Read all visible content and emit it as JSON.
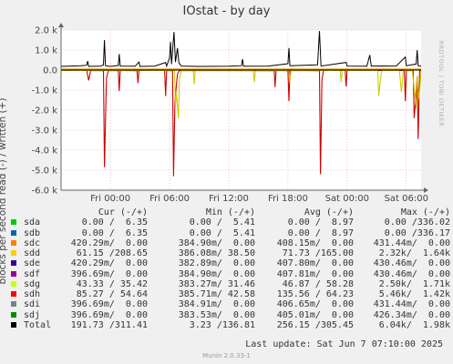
{
  "chart_data": {
    "type": "line",
    "title": "IOstat - by day",
    "ylabel": "blocks per second read (-) / written (+)",
    "side_label": "RRDTOOL / TOBI OETIKER",
    "ylim": [
      -6000,
      2000
    ],
    "yticks": [
      {
        "value": 2000,
        "label": "2.0 k"
      },
      {
        "value": 1000,
        "label": "1.0 k"
      },
      {
        "value": 0,
        "label": "0.0"
      },
      {
        "value": -1000,
        "label": "-1.0 k"
      },
      {
        "value": -2000,
        "label": "-2.0 k"
      },
      {
        "value": -3000,
        "label": "-3.0 k"
      },
      {
        "value": -4000,
        "label": "-4.0 k"
      },
      {
        "value": -5000,
        "label": "-5.0 k"
      },
      {
        "value": -6000,
        "label": "-6.0 k"
      }
    ],
    "xlim": [
      -5,
      31.5
    ],
    "xticks": [
      {
        "value": 0,
        "label": "Fri 00:00"
      },
      {
        "value": 6,
        "label": "Fri 06:00"
      },
      {
        "value": 12,
        "label": "Fri 12:00"
      },
      {
        "value": 18,
        "label": "Fri 18:00"
      },
      {
        "value": 24,
        "label": "Sat 00:00"
      },
      {
        "value": 30,
        "label": "Sat 06:00"
      }
    ],
    "series": [
      {
        "name": "sdh",
        "color": "#cc0000",
        "points": [
          [
            -5,
            -20
          ],
          [
            -2.4,
            -20
          ],
          [
            -2.2,
            -520
          ],
          [
            -2.0,
            -20
          ],
          [
            -0.7,
            -30
          ],
          [
            -0.6,
            -4850
          ],
          [
            -0.4,
            -400
          ],
          [
            -0.2,
            -20
          ],
          [
            0.8,
            -30
          ],
          [
            0.9,
            -1050
          ],
          [
            1.0,
            -20
          ],
          [
            2.7,
            -30
          ],
          [
            2.8,
            -650
          ],
          [
            2.9,
            -20
          ],
          [
            5.5,
            -20
          ],
          [
            5.6,
            -1300
          ],
          [
            5.7,
            -20
          ],
          [
            6.3,
            -30
          ],
          [
            6.4,
            -5300
          ],
          [
            6.55,
            -1500
          ],
          [
            6.8,
            -200
          ],
          [
            7.0,
            -20
          ],
          [
            16.6,
            -30
          ],
          [
            16.7,
            -850
          ],
          [
            16.8,
            -20
          ],
          [
            18.0,
            -30
          ],
          [
            18.1,
            -1550
          ],
          [
            18.2,
            -20
          ],
          [
            21.2,
            -30
          ],
          [
            21.3,
            -5200
          ],
          [
            21.45,
            -500
          ],
          [
            21.6,
            -20
          ],
          [
            23.8,
            -20
          ],
          [
            23.9,
            -820
          ],
          [
            24.0,
            -20
          ],
          [
            29.8,
            -20
          ],
          [
            29.9,
            -1550
          ],
          [
            30.0,
            -20
          ],
          [
            30.7,
            -30
          ],
          [
            30.8,
            -2400
          ],
          [
            30.9,
            -1800
          ],
          [
            31.1,
            -300
          ],
          [
            31.2,
            -3450
          ],
          [
            31.35,
            -20
          ],
          [
            31.5,
            -20
          ]
        ]
      },
      {
        "name": "sdg",
        "color": "#cccc00",
        "points": [
          [
            -5,
            -20
          ],
          [
            6.5,
            -20
          ],
          [
            6.6,
            -1750
          ],
          [
            6.7,
            -1200
          ],
          [
            6.9,
            -2400
          ],
          [
            7.0,
            -400
          ],
          [
            7.2,
            -30
          ],
          [
            8.4,
            -30
          ],
          [
            8.5,
            -700
          ],
          [
            8.6,
            -20
          ],
          [
            14.5,
            -20
          ],
          [
            14.6,
            -600
          ],
          [
            14.7,
            -20
          ],
          [
            18.1,
            -20
          ],
          [
            18.2,
            -600
          ],
          [
            18.3,
            -20
          ],
          [
            23.3,
            -20
          ],
          [
            23.4,
            -600
          ],
          [
            23.5,
            -20
          ],
          [
            27.1,
            -20
          ],
          [
            27.2,
            -1300
          ],
          [
            27.35,
            -600
          ],
          [
            27.5,
            -20
          ],
          [
            29.3,
            -20
          ],
          [
            29.5,
            -1100
          ],
          [
            29.7,
            -20
          ],
          [
            30.6,
            -20
          ],
          [
            30.8,
            -900
          ],
          [
            31.0,
            -1900
          ],
          [
            31.1,
            -300
          ],
          [
            31.3,
            -1450
          ],
          [
            31.5,
            -20
          ]
        ]
      },
      {
        "name": "Total",
        "color": "#000000",
        "points": [
          [
            -5,
            180
          ],
          [
            -4,
            200
          ],
          [
            -3,
            220
          ],
          [
            -2.4,
            240
          ],
          [
            -2.3,
            450
          ],
          [
            -2.2,
            180
          ],
          [
            -1,
            200
          ],
          [
            -0.7,
            260
          ],
          [
            -0.6,
            1500
          ],
          [
            -0.5,
            220
          ],
          [
            0,
            180
          ],
          [
            0.8,
            230
          ],
          [
            0.9,
            800
          ],
          [
            1.0,
            200
          ],
          [
            2.5,
            190
          ],
          [
            2.9,
            400
          ],
          [
            3.0,
            180
          ],
          [
            4.5,
            200
          ],
          [
            5.6,
            380
          ],
          [
            5.7,
            200
          ],
          [
            6.0,
            600
          ],
          [
            6.1,
            1400
          ],
          [
            6.2,
            300
          ],
          [
            6.45,
            1900
          ],
          [
            6.6,
            400
          ],
          [
            6.8,
            1100
          ],
          [
            6.95,
            350
          ],
          [
            7.2,
            200
          ],
          [
            9,
            180
          ],
          [
            12,
            190
          ],
          [
            13.3,
            220
          ],
          [
            13.4,
            550
          ],
          [
            13.5,
            190
          ],
          [
            16,
            200
          ],
          [
            18,
            320
          ],
          [
            18.1,
            1100
          ],
          [
            18.2,
            220
          ],
          [
            21.0,
            260
          ],
          [
            21.2,
            1950
          ],
          [
            21.35,
            200
          ],
          [
            23.9,
            380
          ],
          [
            24.0,
            200
          ],
          [
            26,
            190
          ],
          [
            26.3,
            750
          ],
          [
            26.45,
            200
          ],
          [
            29,
            210
          ],
          [
            29.9,
            650
          ],
          [
            30.0,
            220
          ],
          [
            31.0,
            300
          ],
          [
            31.1,
            1000
          ],
          [
            31.2,
            220
          ],
          [
            31.5,
            200
          ]
        ]
      }
    ]
  },
  "legend": {
    "headers": {
      "cur": "Cur (-/+)",
      "min": "Min (-/+)",
      "avg": "Avg (-/+)",
      "max": "Max (-/+)"
    },
    "rows": [
      {
        "name": "sda",
        "color": "#00cc00",
        "cur": "0.00 /  6.35",
        "min": "0.00 /  5.41",
        "avg": "0.00 /  8.97",
        "max": "0.00 /336.02"
      },
      {
        "name": "sdb",
        "color": "#0066b3",
        "cur": "0.00 /  6.35",
        "min": "0.00 /  5.41",
        "avg": "0.00 /  8.97",
        "max": "0.00 /336.17"
      },
      {
        "name": "sdc",
        "color": "#ff8000",
        "cur": "420.29m/  0.00",
        "min": "384.90m/  0.00",
        "avg": "408.15m/  0.00",
        "max": "431.44m/  0.00"
      },
      {
        "name": "sdd",
        "color": "#ffcc00",
        "cur": "61.15 /208.65",
        "min": "386.08m/ 38.50",
        "avg": "71.73 /165.00",
        "max": "2.32k/  1.64k"
      },
      {
        "name": "sde",
        "color": "#330099",
        "cur": "420.29m/  0.00",
        "min": "382.89m/  0.00",
        "avg": "407.80m/  0.00",
        "max": "430.46m/  0.00"
      },
      {
        "name": "sdf",
        "color": "#990099",
        "cur": "396.69m/  0.00",
        "min": "384.90m/  0.00",
        "avg": "407.81m/  0.00",
        "max": "430.46m/  0.00"
      },
      {
        "name": "sdg",
        "color": "#ccff00",
        "cur": "43.33 / 35.42",
        "min": "383.27m/ 31.46",
        "avg": "46.87 / 58.28",
        "max": "2.50k/  1.71k"
      },
      {
        "name": "sdh",
        "color": "#ff0000",
        "cur": "85.27 / 54.64",
        "min": "385.71m/ 42.58",
        "avg": "135.56 / 64.23",
        "max": "5.46k/  1.42k"
      },
      {
        "name": "sdi",
        "color": "#808080",
        "cur": "396.69m/  0.00",
        "min": "384.91m/  0.00",
        "avg": "406.65m/  0.00",
        "max": "431.44m/  0.00"
      },
      {
        "name": "sdj",
        "color": "#008f00",
        "cur": "396.69m/  0.00",
        "min": "383.53m/  0.00",
        "avg": "405.01m/  0.00",
        "max": "426.34m/  0.00"
      },
      {
        "name": "Total",
        "color": "#000000",
        "cur": "191.73 /311.41",
        "min": "3.23 /136.81",
        "avg": "256.15 /305.45",
        "max": "6.04k/  1.98k"
      }
    ]
  },
  "last_update": "Last update:  Sat Jun  7 07:10:00 2025",
  "munin_version": "Munin 2.0.33-1"
}
